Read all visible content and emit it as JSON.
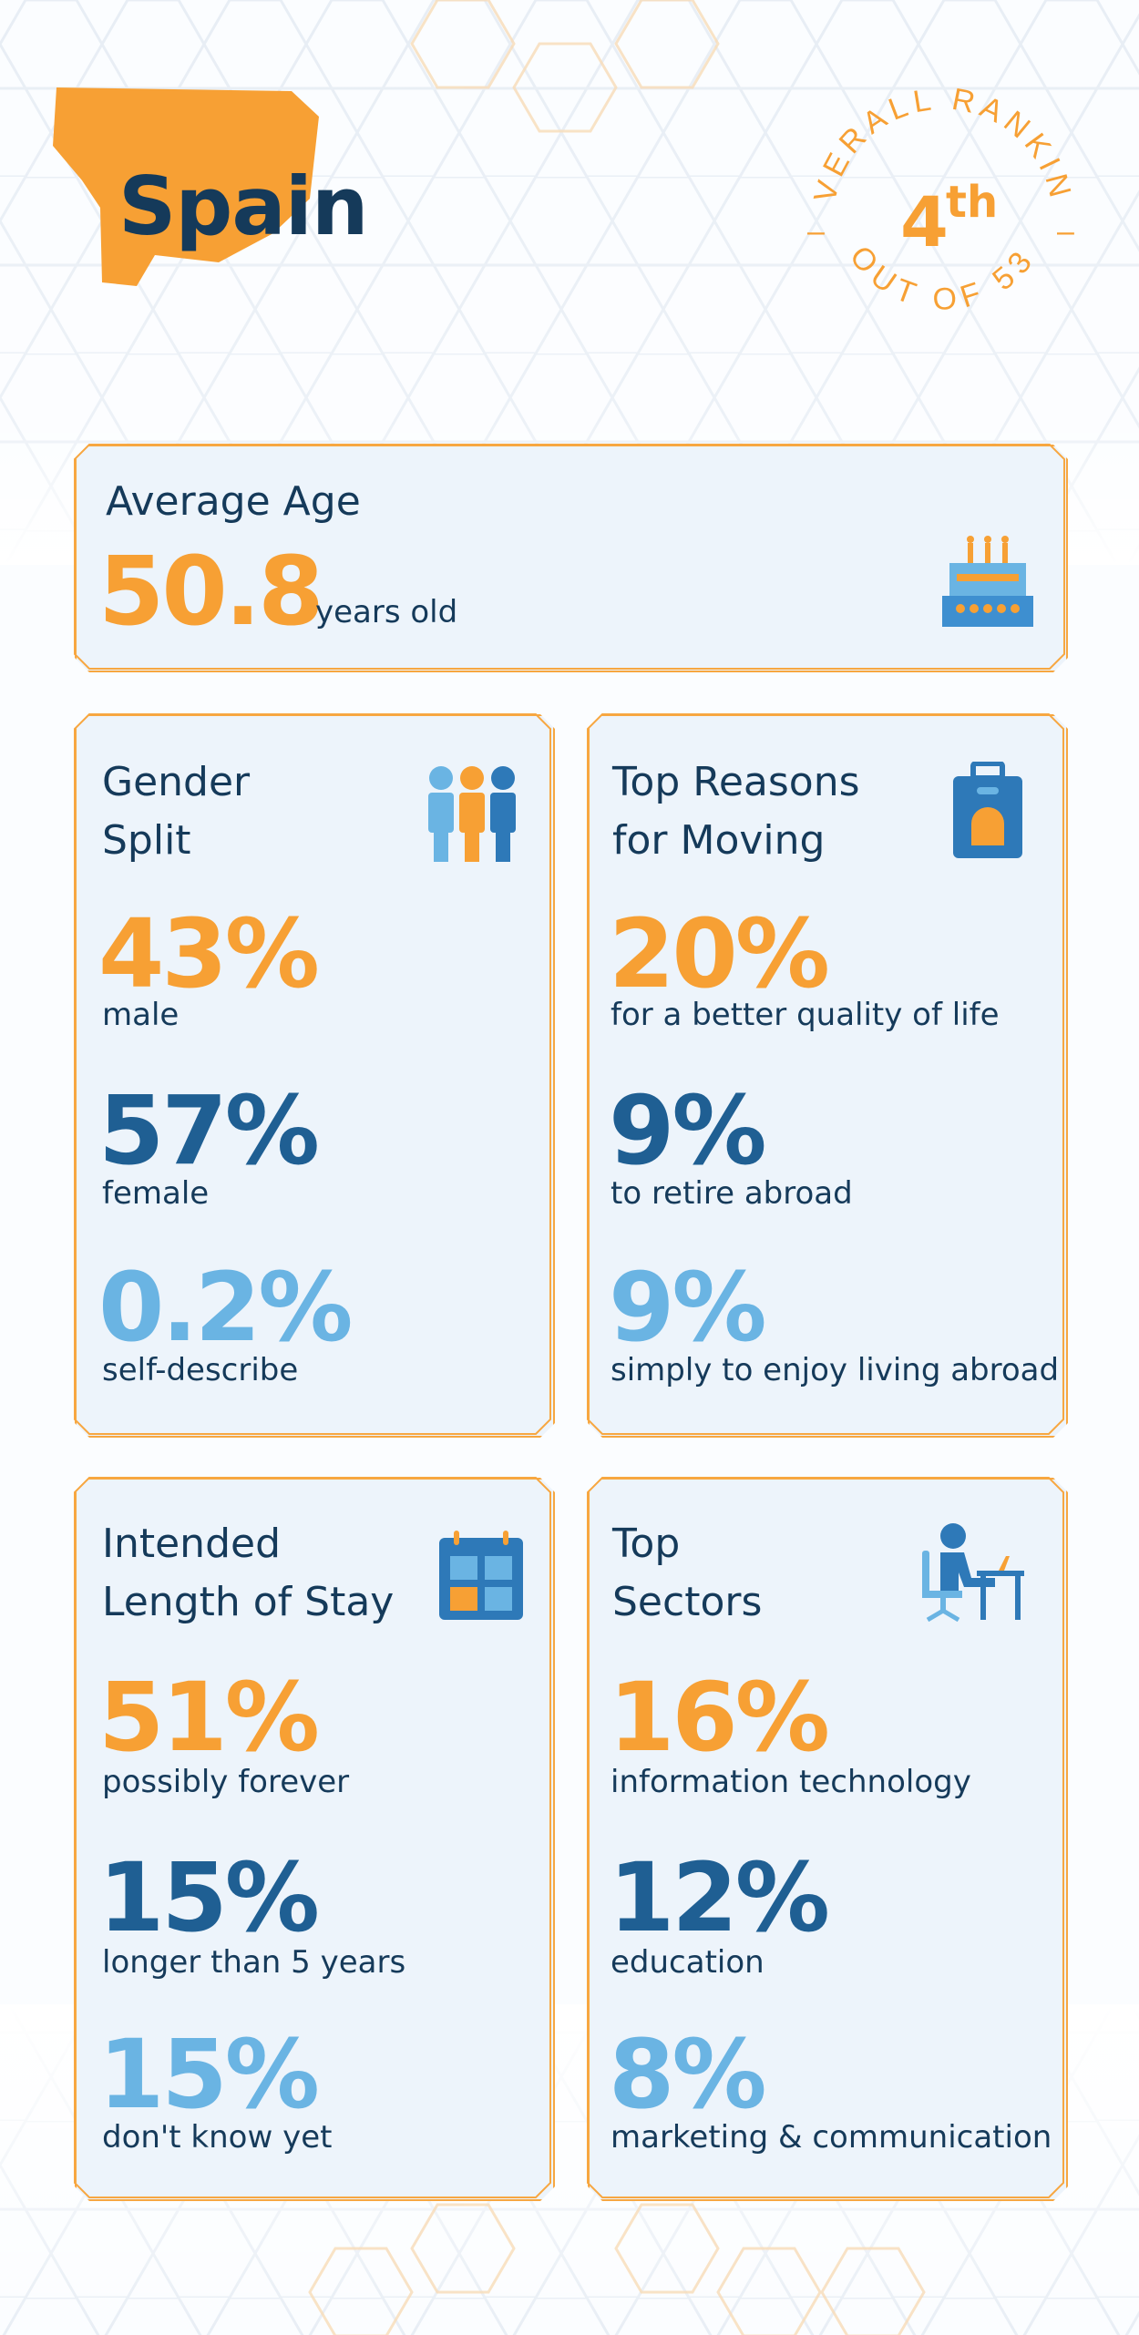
{
  "header": {
    "country": "Spain",
    "ranking_top": "OVERALL RANKING",
    "ranking_value": "4",
    "ranking_suffix": "th",
    "ranking_bottom": "OUT OF 53",
    "dash": "–"
  },
  "average_age": {
    "title": "Average Age",
    "value": "50.8",
    "unit": "years old",
    "icon": "birthday-cake-icon"
  },
  "gender_split": {
    "title_line1": "Gender",
    "title_line2": "Split",
    "icon": "people-icon",
    "items": [
      {
        "value": "43%",
        "label": "male"
      },
      {
        "value": "57%",
        "label": "female"
      },
      {
        "value": "0.2%",
        "label": "self-describe"
      }
    ]
  },
  "reasons": {
    "title_line1": "Top Reasons",
    "title_line2": "for Moving",
    "icon": "suitcase-icon",
    "items": [
      {
        "value": "20%",
        "label": "for a better quality of life"
      },
      {
        "value": "9%",
        "label": "to retire abroad"
      },
      {
        "value": "9%",
        "label": "simply to enjoy living abroad"
      }
    ]
  },
  "stay": {
    "title_line1": "Intended",
    "title_line2": "Length of Stay",
    "icon": "calendar-icon",
    "items": [
      {
        "value": "51%",
        "label": "possibly forever"
      },
      {
        "value": "15%",
        "label": "longer than 5 years"
      },
      {
        "value": "15%",
        "label": "don't know yet"
      }
    ]
  },
  "sectors": {
    "title_line1": "Top",
    "title_line2": "Sectors",
    "icon": "person-at-desk-icon",
    "items": [
      {
        "value": "16%",
        "label": "information technology"
      },
      {
        "value": "12%",
        "label": "education"
      },
      {
        "value": "8%",
        "label": "marketing & communication"
      }
    ]
  },
  "colors": {
    "orange": "#f7a034",
    "dark_blue": "#153a5a",
    "mid_blue": "#1f5f93",
    "light_blue": "#6ab4e3",
    "card_bg": "#edf4fb"
  }
}
